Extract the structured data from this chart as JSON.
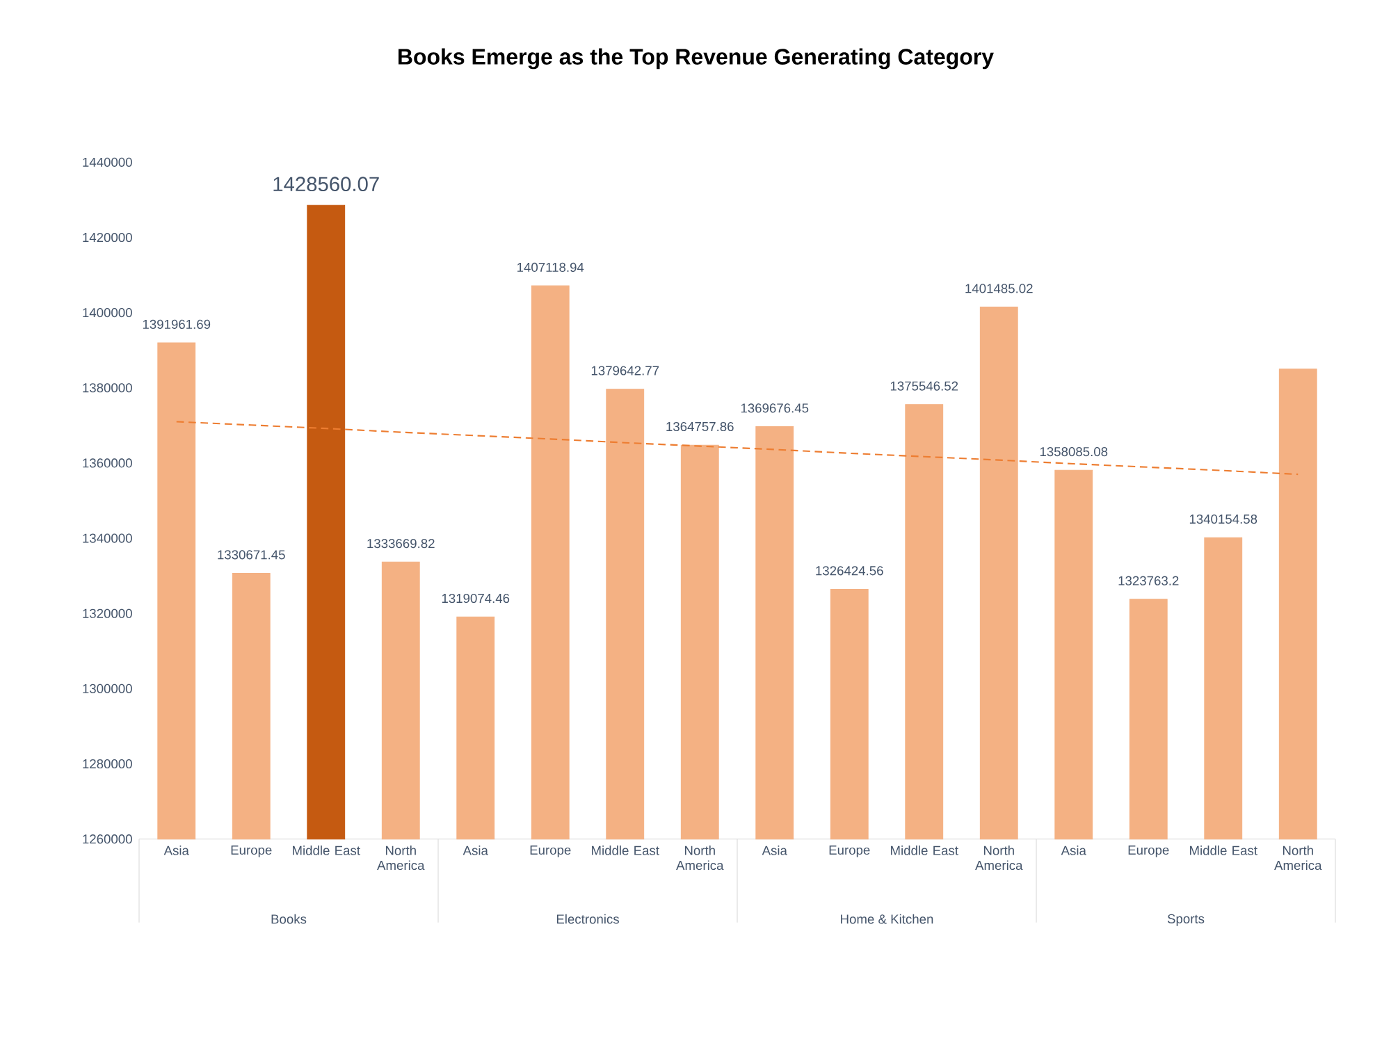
{
  "chart_data": {
    "type": "bar",
    "title": "Books Emerge as the Top Revenue Generating Category",
    "categories": [
      "Asia",
      "Europe",
      "Middle East",
      "North America",
      "Asia",
      "Europe",
      "Middle East",
      "North America",
      "Asia",
      "Europe",
      "Middle East",
      "North America",
      "Asia",
      "Europe",
      "Middle East",
      "North America"
    ],
    "annotations": [
      "Books",
      "Electronics",
      "Home & Kitchen",
      "Sports"
    ],
    "series": [
      {
        "values": [
          1391961.69,
          1330671.45,
          1428560.07,
          1333669.82,
          1319074.46,
          1407118.94,
          1379642.77,
          1364757.86,
          1369676.45,
          1326424.56,
          1375546.52,
          1401485.02,
          1358085.08,
          1323763.2,
          1340154.58,
          1385000
        ],
        "colors": [
          "#f4b183",
          "#f4b183",
          "#c55a11",
          "#f4b183",
          "#f4b183",
          "#f4b183",
          "#f4b183",
          "#f4b183",
          "#f4b183",
          "#f4b183",
          "#f4b183",
          "#f4b183",
          "#f4b183",
          "#f4b183",
          "#f4b183",
          "#f4b183"
        ],
        "value_labels": [
          "1391961.69",
          "1330671.45",
          "1428560.07",
          "1333669.82",
          "1319074.46",
          "1407118.94",
          "1379642.77",
          "1364757.86",
          "1369676.45",
          "1326424.56",
          "1375546.52",
          "1401485.02",
          "1358085.08",
          "1323763.2",
          "1340154.58",
          null
        ]
      },
      {
        "type": "line",
        "color": "#ed7d31",
        "line_style": "dashed",
        "values": [
          1371000,
          1370100,
          1369200,
          1368200,
          1367300,
          1366400,
          1365400,
          1364500,
          1363600,
          1362600,
          1361700,
          1360800,
          1359800,
          1358900,
          1358000,
          1357000
        ]
      }
    ],
    "ylim": [
      1260000,
      1440000
    ],
    "yticks": [
      1260000,
      1280000,
      1300000,
      1320000,
      1340000,
      1360000,
      1380000,
      1400000,
      1420000,
      1440000
    ],
    "grid": false,
    "marker": "none"
  }
}
